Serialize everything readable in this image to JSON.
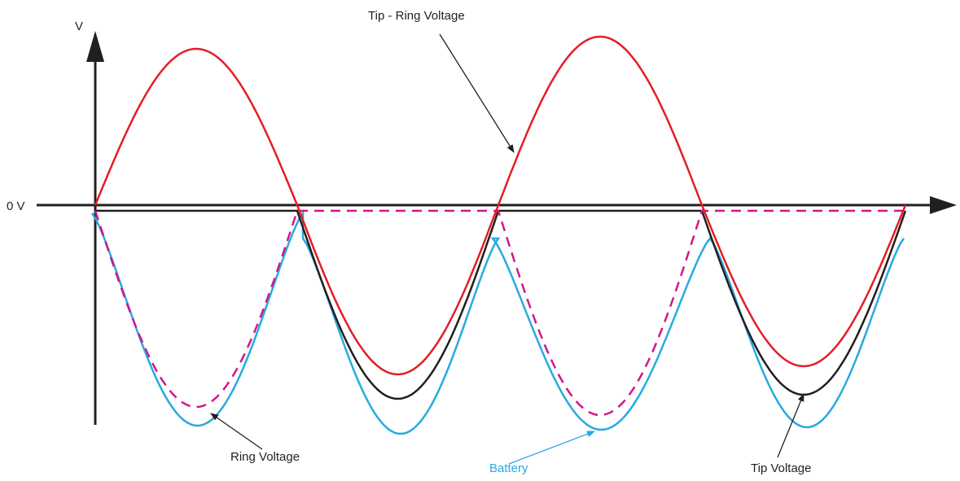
{
  "labels": {
    "y_axis": "V",
    "zero": "0 V",
    "tip_ring_voltage": "Tip - Ring Voltage",
    "ring_voltage": "Ring Voltage",
    "battery": "Battery",
    "tip_voltage": "Tip Voltage"
  },
  "colors": {
    "axis": "#231f20",
    "tip_ring": "#e31e25",
    "tip": "#231f20",
    "ring": "#d4168a",
    "battery": "#27aae1",
    "battery_label": "#27aae1"
  }
}
